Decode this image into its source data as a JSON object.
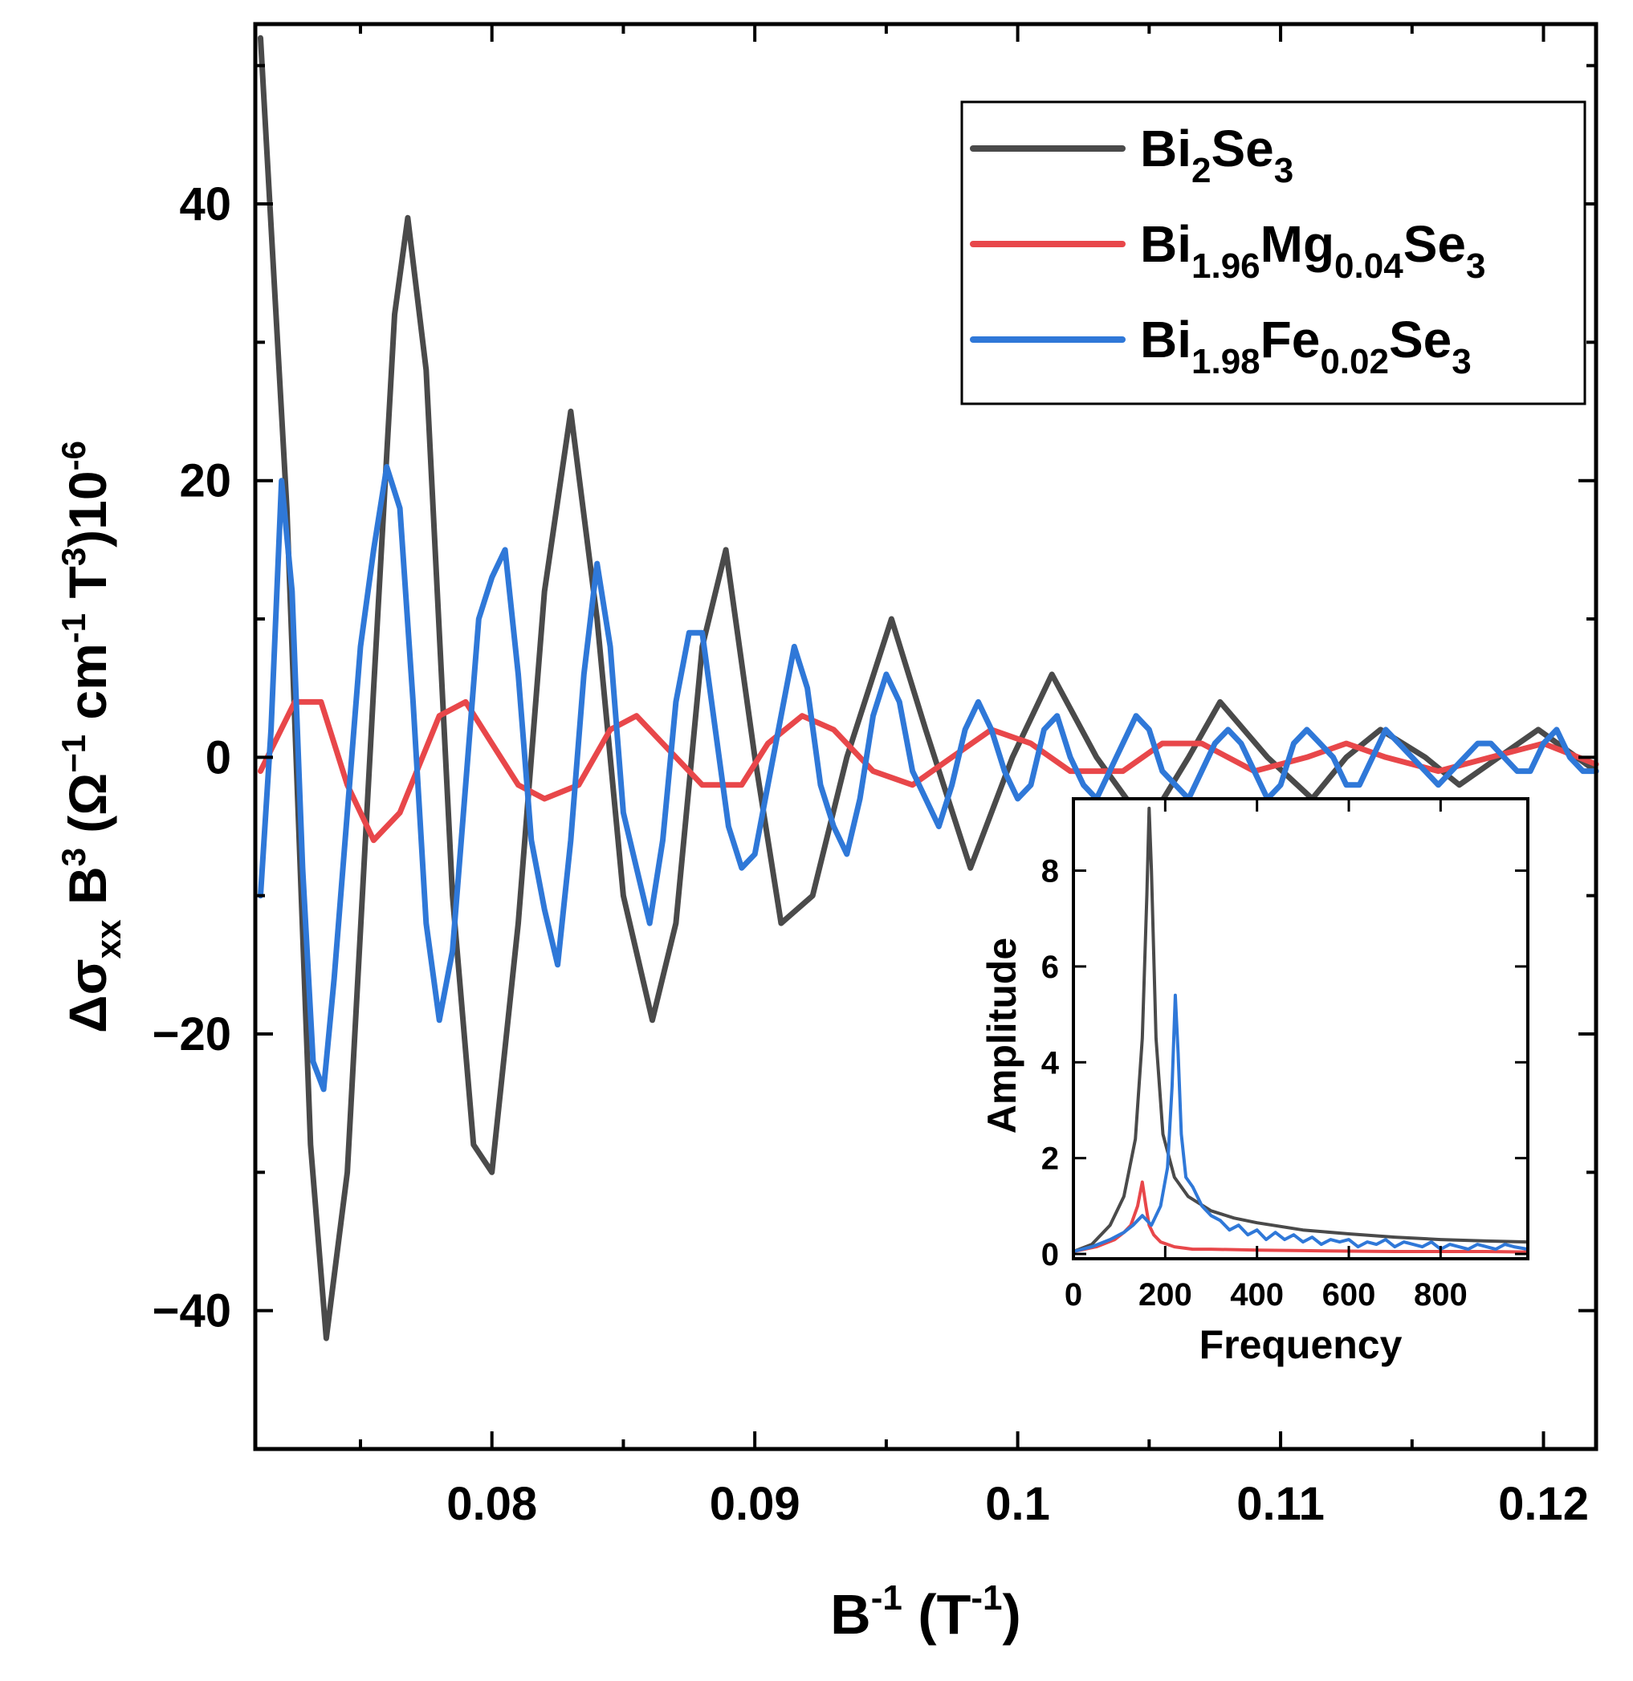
{
  "chart_data": [
    {
      "type": "line",
      "xlabel": "B<sup>-1</sup> (T<sup>-1</sup>)",
      "xlabel_parts": {
        "base": "B",
        "sup1": "-1",
        "mid": " (T",
        "sup2": "-1",
        "end": ")"
      },
      "ylabel_parts": {
        "delta_sigma": "Δσ",
        "sub": "xx",
        "b": " B",
        "sup3": "3",
        "rest": " (Ω",
        "sup4": "−1",
        "cm": " cm",
        "sup5": "-1",
        "t": " T",
        "sup6": "3",
        "tail": ")10",
        "sup7": "-6"
      },
      "xlim": [
        0.071,
        0.122
      ],
      "ylim": [
        -50,
        53
      ],
      "xticks": [
        0.08,
        0.09,
        0.1,
        0.11,
        0.12
      ],
      "xtick_labels": [
        "0.08",
        "0.09",
        "0.1",
        "0.11",
        "0.12"
      ],
      "yticks": [
        -40,
        -20,
        0,
        20,
        40
      ],
      "ytick_labels": [
        "−40",
        "−20",
        "0",
        "20",
        "40"
      ],
      "series": [
        {
          "name": "Bi2Se3",
          "label_parts": [
            [
              "Bi",
              ""
            ],
            [
              "2",
              "sub"
            ],
            [
              "Se",
              ""
            ],
            [
              "3",
              "sub"
            ]
          ],
          "color": "#4a4a4a",
          "x": [
            0.0712,
            0.0722,
            0.0731,
            0.0737,
            0.0745,
            0.0755,
            0.0763,
            0.0768,
            0.0775,
            0.0785,
            0.0793,
            0.08,
            0.081,
            0.082,
            0.083,
            0.084,
            0.085,
            0.0861,
            0.087,
            0.088,
            0.0889,
            0.09,
            0.091,
            0.0922,
            0.0935,
            0.0952,
            0.0965,
            0.0982,
            0.0998,
            0.1013,
            0.103,
            0.1049,
            0.1065,
            0.1077,
            0.1095,
            0.1112,
            0.1125,
            0.1138,
            0.1155,
            0.1168,
            0.1183,
            0.1198,
            0.122
          ],
          "y": [
            52,
            18,
            -28,
            -42,
            -30,
            5,
            32,
            39,
            28,
            -10,
            -28,
            -30,
            -12,
            12,
            25,
            10,
            -10,
            -19,
            -12,
            8,
            15,
            0,
            -12,
            -10,
            0,
            10,
            2,
            -8,
            0,
            6,
            0,
            -5,
            0,
            4,
            0,
            -3,
            0,
            2,
            0,
            -2,
            0,
            2,
            -1
          ]
        },
        {
          "name": "Bi1.96Mg0.04Se3",
          "label_parts": [
            [
              "Bi",
              ""
            ],
            [
              "1.96",
              "sub"
            ],
            [
              "Mg",
              ""
            ],
            [
              "0.04",
              "sub"
            ],
            [
              "Se",
              ""
            ],
            [
              "3",
              "sub"
            ]
          ],
          "color": "#e8474a",
          "x": [
            0.0712,
            0.0725,
            0.0735,
            0.0745,
            0.0755,
            0.0765,
            0.078,
            0.079,
            0.08,
            0.081,
            0.082,
            0.0833,
            0.0845,
            0.0855,
            0.0865,
            0.088,
            0.0895,
            0.0905,
            0.0918,
            0.093,
            0.0945,
            0.096,
            0.0975,
            0.099,
            0.1005,
            0.102,
            0.104,
            0.1055,
            0.107,
            0.109,
            0.111,
            0.1125,
            0.114,
            0.116,
            0.118,
            0.12,
            0.122
          ],
          "y": [
            -1,
            4,
            4,
            -2,
            -6,
            -4,
            3,
            4,
            1,
            -2,
            -3,
            -2,
            2,
            3,
            1,
            -2,
            -2,
            1,
            3,
            2,
            -1,
            -2,
            0,
            2,
            1,
            -1,
            -1,
            1,
            1,
            -1,
            0,
            1,
            0,
            -1,
            0,
            1,
            -0.5
          ]
        },
        {
          "name": "Bi1.98Fe0.02Se3",
          "label_parts": [
            [
              "Bi",
              ""
            ],
            [
              "1.98",
              "sub"
            ],
            [
              "Fe",
              ""
            ],
            [
              "0.02",
              "sub"
            ],
            [
              "Se",
              ""
            ],
            [
              "3",
              "sub"
            ]
          ],
          "color": "#2f78d8",
          "x": [
            0.0712,
            0.0716,
            0.072,
            0.0724,
            0.0728,
            0.0732,
            0.0736,
            0.074,
            0.0745,
            0.075,
            0.0755,
            0.076,
            0.0765,
            0.077,
            0.0775,
            0.078,
            0.0785,
            0.079,
            0.0795,
            0.08,
            0.0805,
            0.081,
            0.0815,
            0.082,
            0.0825,
            0.083,
            0.0835,
            0.084,
            0.0845,
            0.085,
            0.0855,
            0.086,
            0.0865,
            0.087,
            0.0875,
            0.088,
            0.0885,
            0.089,
            0.0895,
            0.09,
            0.0905,
            0.091,
            0.0915,
            0.092,
            0.0925,
            0.093,
            0.0935,
            0.094,
            0.0945,
            0.095,
            0.0955,
            0.096,
            0.0965,
            0.097,
            0.0975,
            0.098,
            0.0985,
            0.099,
            0.0995,
            0.1,
            0.1005,
            0.101,
            0.1015,
            0.102,
            0.1025,
            0.103,
            0.1035,
            0.104,
            0.1045,
            0.105,
            0.1055,
            0.106,
            0.1065,
            0.107,
            0.1075,
            0.108,
            0.1085,
            0.109,
            0.1095,
            0.11,
            0.1105,
            0.111,
            0.1115,
            0.112,
            0.1125,
            0.113,
            0.1135,
            0.114,
            0.1145,
            0.115,
            0.1155,
            0.116,
            0.1165,
            0.117,
            0.1175,
            0.118,
            0.1185,
            0.119,
            0.1195,
            0.12,
            0.1205,
            0.121,
            0.1215,
            0.122
          ],
          "y": [
            -10,
            2,
            20,
            12,
            -8,
            -22,
            -24,
            -16,
            -4,
            8,
            15,
            21,
            18,
            4,
            -12,
            -19,
            -14,
            -2,
            10,
            13,
            15,
            6,
            -6,
            -11,
            -15,
            -6,
            6,
            14,
            8,
            -4,
            -8,
            -12,
            -6,
            4,
            9,
            9,
            2,
            -5,
            -8,
            -7,
            -2,
            3,
            8,
            5,
            -2,
            -5,
            -7,
            -3,
            3,
            6,
            4,
            -1,
            -3,
            -5,
            -2,
            2,
            4,
            2,
            -1,
            -3,
            -2,
            2,
            3,
            0,
            -2,
            -3,
            -1,
            1,
            3,
            2,
            -1,
            -2,
            -3,
            -1,
            1,
            2,
            1,
            -1,
            -3,
            -2,
            1,
            2,
            1,
            0,
            -2,
            -2,
            0,
            2,
            1,
            0,
            -1,
            -2,
            -1,
            0,
            1,
            1,
            0,
            -1,
            -1,
            1,
            2,
            0,
            -1,
            -1
          ]
        }
      ],
      "legend_position": "top-right"
    },
    {
      "type": "line",
      "title": "inset",
      "xlabel": "Frequency",
      "ylabel": "Amplitude",
      "xlim": [
        0,
        990
      ],
      "ylim": [
        -0.1,
        9.5
      ],
      "xticks": [
        0,
        200,
        400,
        600,
        800
      ],
      "xtick_labels": [
        "0",
        "200",
        "400",
        "600",
        "800"
      ],
      "yticks": [
        0,
        2,
        4,
        6,
        8
      ],
      "ytick_labels": [
        "0",
        "2",
        "4",
        "6",
        "8"
      ],
      "series": [
        {
          "name": "Bi2Se3",
          "color": "#4a4a4a",
          "x": [
            0,
            40,
            80,
            110,
            135,
            150,
            160,
            165,
            170,
            180,
            195,
            220,
            250,
            300,
            350,
            400,
            500,
            600,
            700,
            800,
            900,
            990
          ],
          "y": [
            0.05,
            0.2,
            0.6,
            1.2,
            2.4,
            4.5,
            7.5,
            9.3,
            8.0,
            4.5,
            2.5,
            1.6,
            1.2,
            0.9,
            0.75,
            0.65,
            0.5,
            0.42,
            0.35,
            0.3,
            0.27,
            0.25
          ]
        },
        {
          "name": "Bi1.96Mg0.04Se3",
          "color": "#e8474a",
          "x": [
            0,
            50,
            90,
            110,
            125,
            140,
            150,
            158,
            165,
            175,
            190,
            220,
            260,
            300,
            400,
            500,
            600,
            700,
            800,
            900,
            990
          ],
          "y": [
            0.05,
            0.15,
            0.3,
            0.45,
            0.6,
            1.0,
            1.5,
            1.0,
            0.6,
            0.4,
            0.25,
            0.15,
            0.1,
            0.1,
            0.08,
            0.07,
            0.06,
            0.05,
            0.05,
            0.05,
            0.04
          ]
        },
        {
          "name": "Bi1.98Fe0.02Se3",
          "color": "#2f78d8",
          "x": [
            0,
            40,
            80,
            110,
            130,
            150,
            170,
            190,
            205,
            215,
            222,
            228,
            235,
            245,
            260,
            280,
            300,
            320,
            340,
            360,
            380,
            400,
            420,
            440,
            460,
            480,
            500,
            520,
            540,
            560,
            580,
            600,
            620,
            640,
            660,
            680,
            700,
            720,
            740,
            760,
            780,
            800,
            820,
            840,
            860,
            880,
            900,
            920,
            940,
            960,
            990
          ],
          "y": [
            0.05,
            0.15,
            0.3,
            0.45,
            0.6,
            0.8,
            0.6,
            1.0,
            1.8,
            3.5,
            5.4,
            4.2,
            2.5,
            1.6,
            1.4,
            1.0,
            0.8,
            0.7,
            0.5,
            0.6,
            0.4,
            0.5,
            0.3,
            0.45,
            0.3,
            0.4,
            0.25,
            0.35,
            0.2,
            0.3,
            0.25,
            0.3,
            0.15,
            0.25,
            0.2,
            0.3,
            0.15,
            0.25,
            0.2,
            0.15,
            0.25,
            0.1,
            0.2,
            0.15,
            0.1,
            0.2,
            0.15,
            0.1,
            0.2,
            0.15,
            0.1
          ]
        }
      ]
    }
  ]
}
